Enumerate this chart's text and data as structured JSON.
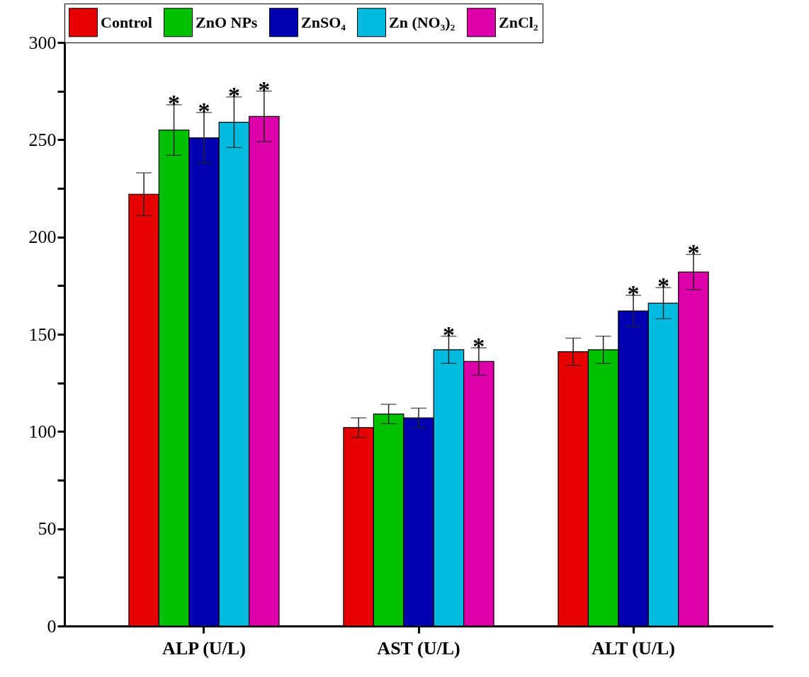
{
  "chart_data": {
    "type": "bar",
    "categories": [
      "ALP (U/L)",
      "AST (U/L)",
      "ALT (U/L)"
    ],
    "series": [
      {
        "name": "Control",
        "color": "#e60000",
        "values": [
          222,
          102,
          141
        ],
        "errors": [
          11,
          5,
          7
        ]
      },
      {
        "name": "ZnO NPs",
        "color": "#00c000",
        "values": [
          255,
          109,
          142
        ],
        "errors": [
          13,
          5,
          7
        ],
        "value_labels": [
          "*",
          null,
          null
        ]
      },
      {
        "name": "ZnSO₄",
        "color": "#0000b0",
        "values": [
          251,
          107,
          162
        ],
        "errors": [
          13,
          5,
          8
        ],
        "value_labels": [
          "*",
          null,
          "*"
        ]
      },
      {
        "name": "Zn (NO₃)₂",
        "color": "#00bbdd",
        "values": [
          259,
          142,
          166
        ],
        "errors": [
          13,
          7,
          8
        ],
        "value_labels": [
          "*",
          "*",
          "*"
        ]
      },
      {
        "name": "ZnCl₂",
        "color": "#dd00aa",
        "values": [
          262,
          136,
          182
        ],
        "errors": [
          13,
          7,
          9
        ],
        "value_labels": [
          "*",
          "*",
          "*"
        ]
      }
    ],
    "ylim": [
      0,
      300
    ],
    "yticks": [
      0,
      {
        "value": 25,
        "label": null
      },
      50,
      {
        "value": 75,
        "label": null
      },
      100,
      {
        "value": 125,
        "label": null
      },
      150,
      {
        "value": 175,
        "label": null
      },
      200,
      {
        "value": 225,
        "label": null
      },
      250,
      {
        "value": 275,
        "label": null
      },
      300
    ],
    "grid": false,
    "legend": "top"
  }
}
